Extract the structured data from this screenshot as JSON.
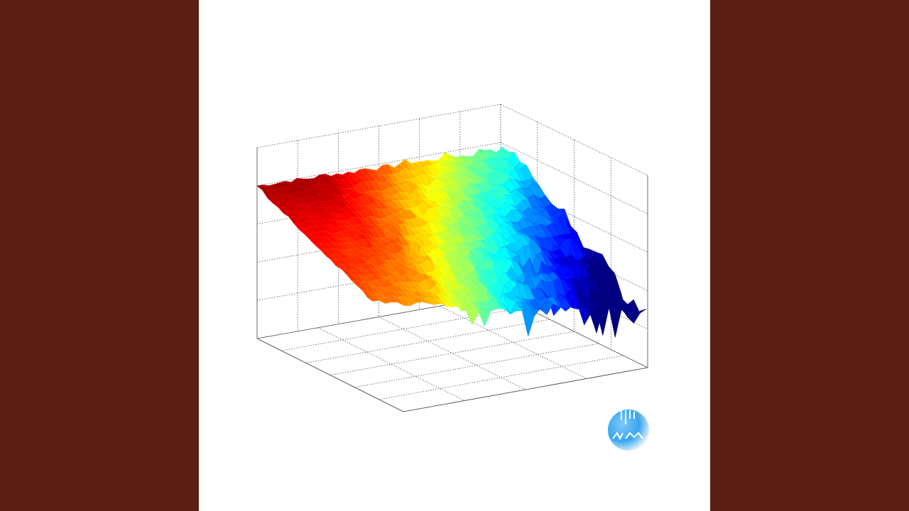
{
  "artwork": {
    "background_color": "#5a1f12",
    "canvas_color": "#ffffff",
    "subject": "3d-surface-plot",
    "colormap": [
      "#00008f",
      "#0000ff",
      "#00ffff",
      "#ffff00",
      "#ff0000",
      "#800000"
    ],
    "logo": {
      "text": "NKM",
      "color": "#3aa6ee"
    }
  }
}
